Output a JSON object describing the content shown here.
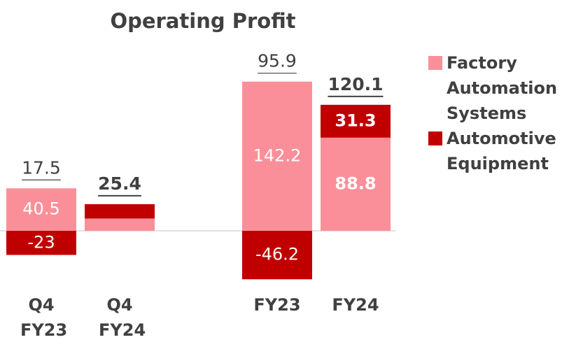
{
  "chart_data": {
    "type": "bar",
    "stacked": true,
    "title": "Operating Profit",
    "categories": [
      "Q4 FY23",
      "Q4 FY24",
      "FY23",
      "FY24"
    ],
    "series": [
      {
        "name": "Factory Automation Systems",
        "color": "#fb8f99",
        "values": [
          40.5,
          11.7,
          142.2,
          88.8
        ]
      },
      {
        "name": "Automotive Equipment",
        "color": "#c00000",
        "values": [
          -23,
          13.7,
          -46.2,
          31.3
        ]
      }
    ],
    "totals": [
      17.5,
      25.4,
      95.9,
      120.1
    ],
    "ylim": [
      -50,
      150
    ],
    "grid": false,
    "legend": "right"
  }
}
